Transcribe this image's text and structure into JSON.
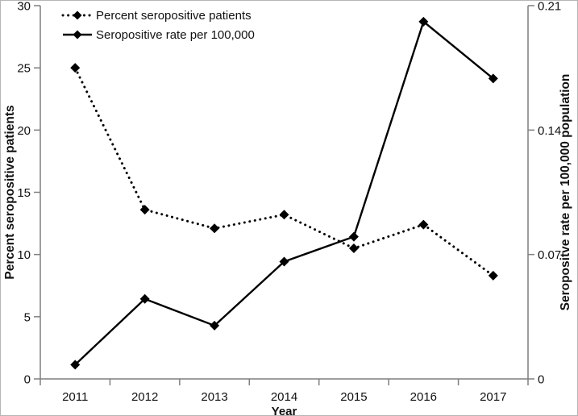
{
  "figure": {
    "background": "#ffffff",
    "border_color": "#b5b5b5"
  },
  "chart_data": {
    "type": "line",
    "title": "",
    "grid": false,
    "axis_color": "#7f7f7f",
    "line_color": "#000000",
    "text_color": "#111111",
    "x": {
      "label": "Year",
      "categories": [
        "2011",
        "2012",
        "2013",
        "2014",
        "2015",
        "2016",
        "2017"
      ]
    },
    "y_left": {
      "label": "Percent seropositive patients",
      "min": 0,
      "max": 30,
      "ticks": [
        0,
        5,
        10,
        15,
        20,
        25,
        30
      ]
    },
    "y_right": {
      "label": "Seropositve rate per 100,000 population",
      "min": 0,
      "max": 0.21,
      "ticks": [
        "0",
        "0.07",
        "0.14",
        "0.21"
      ]
    },
    "legend": {
      "position": "top-left"
    },
    "series": [
      {
        "name": "Percent seropositive patients",
        "axis": "left",
        "style": "dotted",
        "marker": "diamond",
        "color": "#000000",
        "values": [
          25.0,
          13.6,
          12.1,
          13.2,
          10.5,
          12.4,
          8.3
        ]
      },
      {
        "name": "Seropositive rate per 100,000",
        "axis": "right",
        "style": "solid",
        "marker": "diamond",
        "color": "#000000",
        "values": [
          0.008,
          0.045,
          0.03,
          0.066,
          0.08,
          0.201,
          0.169
        ]
      }
    ]
  }
}
